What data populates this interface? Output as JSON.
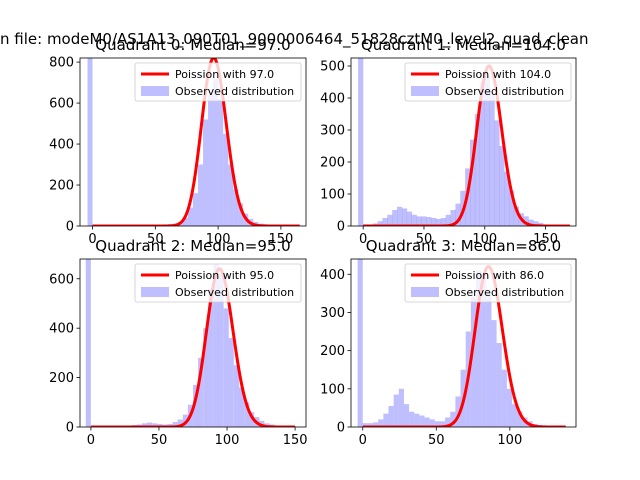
{
  "suptitle": "n file: modeM0/AS1A13_090T01_9000006464_51828cztM0_level2_quad_clean",
  "colors": {
    "hist": "#8080ff",
    "hist_alpha": 0.5,
    "poisson": "#ff0000",
    "axes": "#000000"
  },
  "chart_data": [
    {
      "type": "bar",
      "title": "Quadrant 0: Median=97.0",
      "xlim": [
        -10,
        170
      ],
      "ylim": [
        0,
        820
      ],
      "xticks": [
        0,
        50,
        100,
        150
      ],
      "yticks": [
        0,
        200,
        400,
        600,
        800
      ],
      "legend": {
        "placement": "top-right",
        "entries": [
          "Poission with 97.0",
          "Observed distribution"
        ]
      },
      "bin_width": 4,
      "hist_x": [
        -2,
        2,
        6,
        10,
        14,
        18,
        22,
        26,
        30,
        34,
        38,
        42,
        46,
        50,
        54,
        58,
        62,
        66,
        70,
        74,
        78,
        82,
        86,
        90,
        94,
        98,
        102,
        106,
        110,
        114,
        118,
        122,
        126,
        130,
        134,
        138,
        142,
        146,
        150,
        154,
        158,
        162
      ],
      "hist_y": [
        830,
        5,
        3,
        3,
        3,
        3,
        3,
        4,
        4,
        4,
        5,
        5,
        6,
        6,
        6,
        8,
        10,
        12,
        20,
        40,
        90,
        160,
        300,
        520,
        640,
        720,
        620,
        450,
        300,
        180,
        110,
        60,
        35,
        20,
        12,
        8,
        5,
        4,
        3,
        2,
        2,
        1
      ],
      "poisson_mean": 97.0,
      "poisson_peak": 820,
      "poisson_x": [
        0,
        165
      ]
    },
    {
      "type": "bar",
      "title": "Quadrant 1: Median=104.0",
      "xlim": [
        -10,
        175
      ],
      "ylim": [
        0,
        525
      ],
      "xticks": [
        0,
        50,
        100,
        150
      ],
      "yticks": [
        0,
        100,
        200,
        300,
        400,
        500
      ],
      "legend": {
        "placement": "top-right",
        "entries": [
          "Poission with 104.0",
          "Observed distribution"
        ]
      },
      "bin_width": 4.3,
      "hist_x": [
        -2,
        2,
        6,
        10,
        14,
        18,
        22,
        26,
        30,
        34,
        38,
        42,
        46,
        50,
        54,
        58,
        62,
        66,
        70,
        74,
        78,
        82,
        86,
        90,
        94,
        98,
        102,
        106,
        110,
        114,
        118,
        122,
        126,
        130,
        134,
        138,
        142,
        146,
        150,
        154,
        158,
        162,
        166
      ],
      "hist_y": [
        530,
        5,
        5,
        8,
        15,
        25,
        35,
        50,
        60,
        55,
        45,
        35,
        30,
        30,
        28,
        25,
        22,
        25,
        35,
        50,
        70,
        110,
        180,
        270,
        350,
        450,
        470,
        420,
        330,
        250,
        170,
        110,
        60,
        40,
        30,
        20,
        15,
        10,
        5,
        3,
        2,
        1,
        1
      ],
      "poisson_mean": 104.0,
      "poisson_peak": 500,
      "poisson_x": [
        0,
        170
      ]
    },
    {
      "type": "bar",
      "title": "Quadrant 2: Median=95.0",
      "xlim": [
        -8,
        158
      ],
      "ylim": [
        0,
        680
      ],
      "xticks": [
        0,
        50,
        100,
        150
      ],
      "yticks": [
        0,
        200,
        400,
        600
      ],
      "legend": {
        "placement": "top-right",
        "entries": [
          "Poission with 95.0",
          "Observed distribution"
        ]
      },
      "bin_width": 3.75,
      "hist_x": [
        -1.9,
        1.9,
        5.6,
        9.4,
        13.1,
        16.9,
        20.6,
        24.4,
        28.1,
        31.9,
        35.6,
        39.4,
        43.1,
        46.9,
        50.6,
        54.4,
        58.1,
        61.9,
        65.6,
        69.4,
        73.1,
        76.9,
        80.6,
        84.4,
        88.1,
        91.9,
        95.6,
        99.4,
        103.1,
        106.9,
        110.6,
        114.4,
        118.1,
        121.9,
        125.6,
        129.4,
        133.1,
        136.9,
        140.6,
        144.4,
        148.1
      ],
      "hist_y": [
        690,
        5,
        3,
        3,
        3,
        4,
        4,
        5,
        6,
        8,
        10,
        15,
        18,
        15,
        12,
        10,
        12,
        20,
        30,
        50,
        90,
        170,
        280,
        400,
        560,
        660,
        620,
        480,
        360,
        250,
        160,
        100,
        60,
        40,
        25,
        15,
        10,
        6,
        4,
        2,
        1
      ],
      "poisson_mean": 95.0,
      "poisson_peak": 640,
      "poisson_x": [
        0,
        150
      ]
    },
    {
      "type": "bar",
      "title": "Quadrant 3: Median=86.0",
      "xlim": [
        -8,
        145
      ],
      "ylim": [
        0,
        440
      ],
      "xticks": [
        0,
        50,
        100
      ],
      "yticks": [
        0,
        100,
        200,
        300,
        400
      ],
      "legend": {
        "placement": "top-right",
        "entries": [
          "Poission with 86.0",
          "Observed distribution"
        ]
      },
      "bin_width": 3.5,
      "hist_x": [
        -1.75,
        1.75,
        5.25,
        8.75,
        12.25,
        15.75,
        19.25,
        22.75,
        26.25,
        29.75,
        33.25,
        36.75,
        40.25,
        43.75,
        47.25,
        50.75,
        54.25,
        57.75,
        61.25,
        64.75,
        68.25,
        71.75,
        75.25,
        78.75,
        82.25,
        85.75,
        89.25,
        92.75,
        96.25,
        99.75,
        103.25,
        106.75,
        110.25,
        113.75,
        117.25,
        120.75,
        124.25,
        127.75,
        131.25,
        134.75
      ],
      "hist_y": [
        450,
        10,
        10,
        12,
        20,
        35,
        55,
        85,
        100,
        60,
        40,
        35,
        30,
        25,
        20,
        15,
        15,
        25,
        40,
        80,
        150,
        250,
        340,
        410,
        400,
        350,
        280,
        220,
        150,
        100,
        60,
        40,
        25,
        15,
        8,
        5,
        3,
        2,
        1,
        1
      ],
      "poisson_mean": 86.0,
      "poisson_peak": 420,
      "poisson_x": [
        0,
        138
      ]
    }
  ]
}
